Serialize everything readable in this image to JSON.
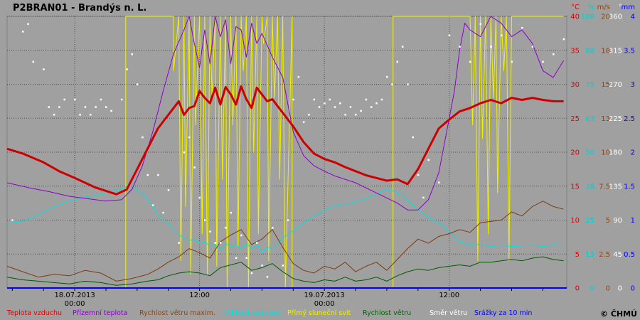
{
  "chart_data": {
    "type": "line",
    "title": "P2BRAN01 - Brandýs n. L.",
    "copyright": "© ČHMÚ",
    "time_axis": {
      "range_hours": [
        -13,
        94.6
      ],
      "date_labels": [
        {
          "hour": 0,
          "date": "18.07.2013",
          "time": "00:00"
        },
        {
          "hour": 48,
          "date": "19.07.2013",
          "time": "00:00"
        }
      ],
      "time_labels": [
        {
          "hour": 24,
          "label": "12:00"
        },
        {
          "hour": 72,
          "label": "12:00"
        }
      ]
    },
    "y_axes": [
      {
        "unit": "°C",
        "color": "#e00000",
        "ticks": [
          "0",
          "5",
          "10",
          "15",
          "20",
          "25",
          "30",
          "35",
          "40"
        ]
      },
      {
        "unit": "%",
        "color": "#00d0d0",
        "ticks": [
          "0",
          "13",
          "25",
          "38",
          "50",
          "63",
          "75",
          "88",
          "100"
        ]
      },
      {
        "unit": "m/s",
        "color": "#8b4513",
        "ticks": [
          "0",
          "2.5",
          "5",
          "7.5",
          "10",
          "13",
          "15",
          "18",
          "20"
        ]
      },
      {
        "unit": "°",
        "color": "#ffffff",
        "ticks": [
          "0",
          "45",
          "90",
          "135",
          "180",
          "225",
          "270",
          "315",
          "360"
        ]
      },
      {
        "unit": "mm",
        "color": "#0000ff",
        "ticks": [
          "0",
          "0.5",
          "1",
          "1.5",
          "2",
          "2.5",
          "3",
          "3.5",
          "4"
        ]
      }
    ],
    "legend": [
      {
        "label": "Teplota vzduchu",
        "color": "#e00000"
      },
      {
        "label": "Přízemní teplota",
        "color": "#8a00c8"
      },
      {
        "label": "Rychlost větru maxim.",
        "color": "#8b4513"
      },
      {
        "label": "Vlhkost vzduchu",
        "color": "#00e0e0"
      },
      {
        "label": "Přímý sluneční svit",
        "color": "#f0f000"
      },
      {
        "label": "Rychlost větru",
        "color": "#006400"
      },
      {
        "label": "Směr větru",
        "color": "#ffffff"
      },
      {
        "label": "Srážky za 10 min",
        "color": "#0000ff"
      }
    ],
    "series": [
      {
        "name": "Teplota vzduchu",
        "unit": "°C",
        "color": "#cc0000",
        "x": [
          -13,
          -10,
          -6,
          -3,
          0,
          2,
          4,
          6,
          8,
          10,
          12,
          14,
          16,
          17,
          18,
          19,
          20,
          21,
          22,
          23,
          24,
          25,
          26,
          27,
          28,
          29,
          30,
          31,
          32,
          33,
          34,
          35,
          36,
          37,
          38,
          39,
          40,
          42,
          44,
          46,
          48,
          50,
          52,
          54,
          56,
          58,
          60,
          62,
          64,
          66,
          68,
          70,
          72,
          74,
          76,
          78,
          80,
          82,
          84,
          86,
          88,
          90,
          92,
          94
        ],
        "y": [
          20.5,
          19.8,
          18.5,
          17.2,
          16.2,
          15.5,
          14.8,
          14.3,
          13.8,
          14.5,
          17.5,
          20.5,
          23.5,
          24.5,
          25.5,
          26.5,
          27.5,
          25.5,
          26.5,
          26.8,
          29,
          28,
          27.2,
          29.5,
          27,
          29.6,
          28.5,
          27,
          29.7,
          27.8,
          26.5,
          29.5,
          28.5,
          27.5,
          27.8,
          26.8,
          25.8,
          23.8,
          21.5,
          19.8,
          19,
          18.5,
          17.8,
          17.2,
          16.6,
          16.2,
          15.8,
          16,
          15.3,
          17.5,
          20.5,
          23.5,
          24.8,
          26,
          26.5,
          27.2,
          27.7,
          27.2,
          28,
          27.7,
          28,
          27.7,
          27.5,
          27.5
        ]
      },
      {
        "name": "Přízemní teplota",
        "unit": "°C",
        "color": "#8a00c8",
        "x": [
          -13,
          -9,
          -5,
          -1,
          2,
          6,
          9,
          11,
          13,
          15,
          17,
          19,
          21,
          22,
          23,
          24,
          25,
          26,
          27,
          28,
          29,
          30,
          31,
          32,
          33,
          34,
          35,
          36,
          38,
          40,
          42,
          44,
          46,
          48,
          50,
          54,
          58,
          62,
          64,
          66,
          68,
          70,
          72,
          73,
          74,
          75,
          76,
          78,
          80,
          82,
          84,
          86,
          88,
          90,
          92,
          94
        ],
        "y": [
          15.5,
          14.8,
          14.2,
          13.5,
          13.2,
          12.8,
          13,
          14.5,
          18,
          23,
          29,
          34.5,
          38,
          40,
          36,
          32.5,
          38,
          33,
          40,
          37,
          39.5,
          33,
          38.5,
          38,
          34,
          39,
          36,
          37.5,
          34,
          31,
          23,
          19.5,
          18,
          17.2,
          16.5,
          15.5,
          14,
          12.5,
          11.5,
          11.5,
          13,
          17,
          25,
          29,
          35,
          39,
          38,
          37,
          40,
          39,
          37,
          38,
          36,
          32,
          31,
          33.5
        ]
      },
      {
        "name": "Vlhkost vzduchu",
        "unit": "%",
        "color": "#00e0e0",
        "x": [
          -13,
          -10,
          -7,
          -4,
          -1,
          2,
          5,
          8,
          11,
          14,
          16,
          18,
          20,
          21,
          22,
          23,
          24,
          25,
          26,
          27,
          28,
          29,
          30,
          31,
          32,
          33,
          34,
          35,
          36,
          37,
          38,
          39,
          40,
          42,
          44,
          46,
          48,
          50,
          52,
          54,
          56,
          58,
          60,
          61,
          62,
          63,
          64,
          65,
          66,
          68,
          70,
          72,
          73,
          74,
          75,
          76,
          78,
          80,
          82,
          84,
          86,
          88,
          90,
          92,
          94
        ],
        "y": [
          23.8,
          24.5,
          27,
          30,
          32,
          33.5,
          34.5,
          36,
          37.8,
          33,
          27,
          23.5,
          19.5,
          18.5,
          17.5,
          18,
          16.5,
          17,
          15.5,
          16,
          14,
          16.5,
          15,
          16,
          14,
          16.5,
          14.5,
          15.8,
          13.2,
          15,
          14.5,
          16,
          18.5,
          21,
          24,
          26.5,
          28.5,
          30.3,
          30.8,
          31.8,
          33,
          34.5,
          36.5,
          36,
          35,
          34,
          32.5,
          30.5,
          29,
          26,
          24,
          21,
          19,
          17,
          16.5,
          15.8,
          16.2,
          15.3,
          15.7,
          15.3,
          15.5,
          15.7,
          15.3,
          15.8,
          15.5
        ]
      },
      {
        "name": "Rychlost větru maxim.",
        "unit": "m/s",
        "color": "#7a3c10",
        "x": [
          -13,
          -10,
          -7,
          -4,
          -1,
          2,
          5,
          8,
          11,
          14,
          16,
          18,
          20,
          22,
          24,
          26,
          28,
          30,
          32,
          34,
          36,
          38,
          40,
          42,
          44,
          46,
          48,
          50,
          52,
          54,
          56,
          58,
          60,
          62,
          64,
          66,
          68,
          70,
          72,
          74,
          76,
          78,
          80,
          82,
          84,
          86,
          88,
          90,
          92,
          94
        ],
        "y": [
          1.6,
          1.2,
          0.8,
          1,
          0.9,
          1.3,
          1.1,
          0.5,
          0.7,
          1,
          1.4,
          1.9,
          2.3,
          2.9,
          2.6,
          2.2,
          3.4,
          3.9,
          4.3,
          3.2,
          3.6,
          4.3,
          3.0,
          1.8,
          1.3,
          1.1,
          1.6,
          1.4,
          1.9,
          1.2,
          1.6,
          1.9,
          1.3,
          2.1,
          2.9,
          3.6,
          3.3,
          3.8,
          4.0,
          4.3,
          4.1,
          4.8,
          4.9,
          5.0,
          5.6,
          5.3,
          6.0,
          6.4,
          6.0,
          5.8
        ]
      },
      {
        "name": "Rychlost větru",
        "unit": "m/s",
        "color": "#005a00",
        "x": [
          -13,
          -10,
          -7,
          -4,
          -1,
          2,
          5,
          8,
          11,
          14,
          16,
          18,
          20,
          22,
          24,
          26,
          28,
          30,
          32,
          34,
          36,
          38,
          40,
          42,
          44,
          46,
          48,
          50,
          52,
          54,
          56,
          58,
          60,
          62,
          64,
          66,
          68,
          70,
          72,
          74,
          76,
          78,
          80,
          82,
          84,
          86,
          88,
          90,
          92,
          94
        ],
        "y": [
          0.8,
          0.6,
          0.5,
          0.4,
          0.3,
          0.5,
          0.4,
          0.2,
          0.3,
          0.5,
          0.6,
          0.9,
          1.1,
          1.2,
          1.1,
          0.9,
          1.5,
          1.7,
          1.9,
          1.3,
          1.5,
          1.8,
          1.2,
          0.7,
          0.5,
          0.4,
          0.6,
          0.5,
          0.8,
          0.5,
          0.6,
          0.8,
          0.5,
          0.9,
          1.2,
          1.4,
          1.3,
          1.5,
          1.6,
          1.7,
          1.6,
          1.9,
          1.9,
          2.0,
          2.1,
          2.0,
          2.2,
          2.3,
          2.1,
          2.0
        ]
      },
      {
        "name": "Přímý sluneční svit",
        "unit": "%",
        "color": "#f0f000",
        "x": [
          -13,
          9.8,
          9.8,
          19,
          19,
          20,
          20.4,
          21,
          21.3,
          22,
          22.3,
          23,
          23.2,
          24,
          24.5,
          25,
          25.5,
          26,
          26.4,
          27,
          27.3,
          28,
          28.4,
          29,
          29.3,
          30,
          30.4,
          31,
          31.4,
          32,
          32.4,
          33,
          33.4,
          34,
          34.4,
          35,
          35.3,
          36,
          36.3,
          37,
          37.3,
          38,
          38.4,
          39,
          39.4,
          40,
          40.5,
          41.8,
          41.8,
          61.2,
          61.2,
          76,
          76.5,
          77,
          77.5,
          78,
          78.4,
          79,
          79.5,
          80,
          80.5,
          81,
          81.3,
          82,
          82.5,
          83,
          83.5,
          84,
          85,
          94
        ],
        "y": [
          0,
          0,
          100,
          100,
          80,
          100,
          10,
          100,
          30,
          100,
          5,
          100,
          60,
          100,
          20,
          100,
          5,
          100,
          70,
          100,
          8,
          100,
          40,
          100,
          0,
          100,
          60,
          100,
          15,
          100,
          80,
          100,
          0,
          100,
          50,
          100,
          20,
          100,
          90,
          100,
          10,
          100,
          70,
          100,
          40,
          100,
          0,
          100,
          0,
          0,
          100,
          100,
          60,
          100,
          10,
          100,
          55,
          100,
          20,
          100,
          70,
          100,
          35,
          100,
          80,
          100,
          10,
          100,
          100,
          100
        ]
      },
      {
        "name": "Směr větru",
        "unit": "°",
        "color": "#ffffff",
        "x": [
          -12,
          -10,
          -9,
          -8,
          -6,
          -5,
          -4,
          -3,
          -2,
          0,
          1,
          2,
          3,
          4,
          5,
          6,
          7,
          9,
          10,
          11,
          12,
          13,
          14,
          15,
          16,
          17,
          18,
          20,
          21,
          22,
          23,
          24,
          25,
          26,
          27,
          28,
          29,
          30,
          31,
          32,
          33,
          34,
          35,
          36,
          37,
          38,
          40,
          41,
          42,
          43,
          44,
          45,
          46,
          47,
          48,
          49,
          50,
          51,
          52,
          53,
          54,
          55,
          56,
          57,
          58,
          59,
          60,
          61,
          62,
          63,
          64,
          65,
          66,
          67,
          68,
          70,
          72,
          74,
          76,
          78,
          80,
          82,
          84,
          86,
          88,
          90,
          92,
          94
        ],
        "y": [
          90,
          340,
          350,
          300,
          290,
          240,
          230,
          240,
          250,
          250,
          230,
          240,
          230,
          240,
          250,
          240,
          235,
          250,
          290,
          310,
          270,
          200,
          150,
          110,
          150,
          100,
          130,
          60,
          180,
          200,
          160,
          120,
          90,
          75,
          60,
          60,
          80,
          100,
          40,
          70,
          40,
          20,
          60,
          30,
          15,
          80,
          30,
          90,
          250,
          280,
          220,
          230,
          250,
          240,
          245,
          250,
          240,
          245,
          230,
          240,
          230,
          235,
          250,
          240,
          245,
          250,
          280,
          270,
          300,
          320,
          270,
          200,
          150,
          120,
          170,
          140,
          335,
          320,
          300,
          350,
          320,
          335,
          300,
          345,
          320,
          300,
          310,
          330
        ]
      },
      {
        "name": "Srážky za 10 min",
        "unit": "mm",
        "color": "#0000ff",
        "x": [
          -13,
          94.6
        ],
        "y": [
          0,
          0
        ]
      }
    ]
  }
}
